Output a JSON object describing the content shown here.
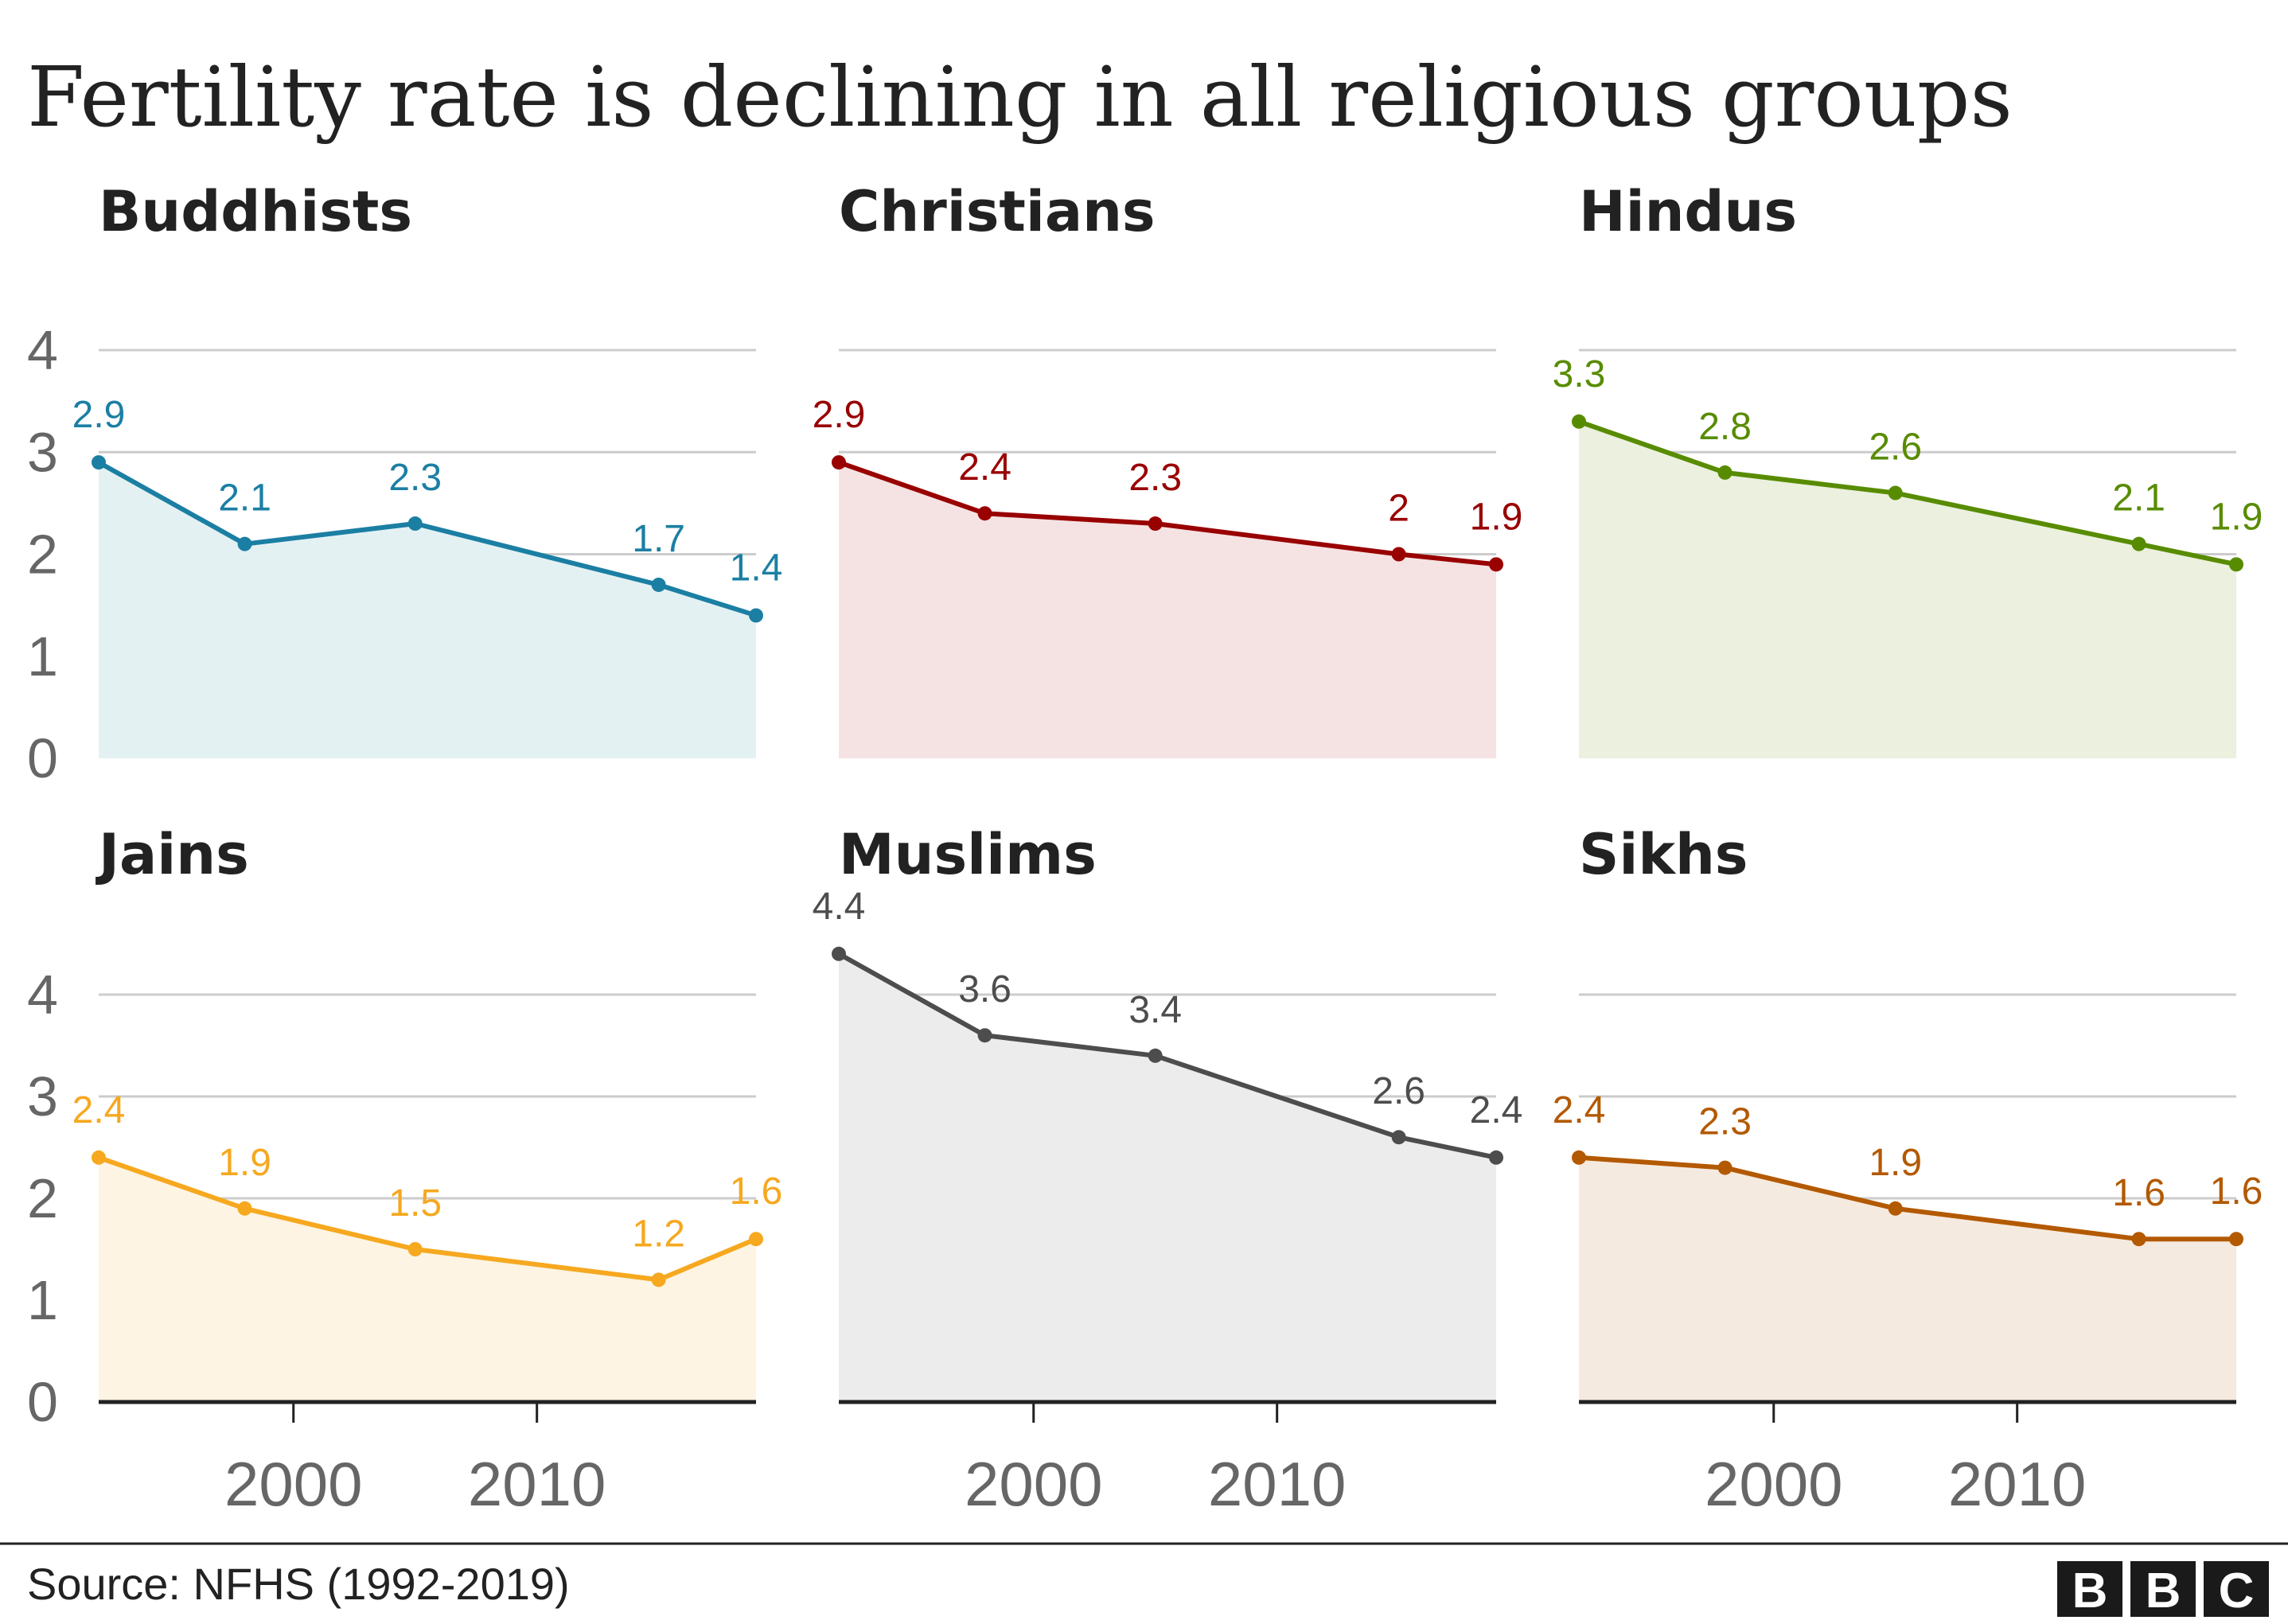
{
  "title": "Fertility rate is declining in all religious groups",
  "source": "Source: NFHS (1992-2019)",
  "logo": {
    "letters": [
      "B",
      "B",
      "C"
    ]
  },
  "colors": {
    "text": "#222222",
    "axis_text": "#666666",
    "grid": "#cccccc",
    "baseline": "#222222"
  },
  "chart_data": [
    {
      "type": "area",
      "title": "Buddhists",
      "color": "#1b7fa3",
      "fill": "#e4f1f3",
      "x": [
        1992,
        1998,
        2005,
        2015,
        2019
      ],
      "values": [
        2.9,
        2.1,
        2.3,
        1.7,
        1.4
      ],
      "labels": [
        "2.9",
        "2.1",
        "2.3",
        "1.7",
        "1.4"
      ],
      "ylim": [
        0,
        4
      ],
      "yticks": [
        "0",
        "1",
        "2",
        "3",
        "4"
      ],
      "xticks": [],
      "xlim": [
        1992,
        2019
      ]
    },
    {
      "type": "area",
      "title": "Christians",
      "color": "#990000",
      "fill": "#f5e3e3",
      "x": [
        1992,
        1998,
        2005,
        2015,
        2019
      ],
      "values": [
        2.9,
        2.4,
        2.3,
        2.0,
        1.9
      ],
      "labels": [
        "2.9",
        "2.4",
        "2.3",
        "2",
        "1.9"
      ],
      "ylim": [
        0,
        4
      ],
      "yticks": [],
      "xticks": [],
      "xlim": [
        1992,
        2019
      ]
    },
    {
      "type": "area",
      "title": "Hindus",
      "color": "#588c00",
      "fill": "#ebf0df",
      "x": [
        1992,
        1998,
        2005,
        2015,
        2019
      ],
      "values": [
        3.3,
        2.8,
        2.6,
        2.1,
        1.9
      ],
      "labels": [
        "3.3",
        "2.8",
        "2.6",
        "2.1",
        "1.9"
      ],
      "ylim": [
        0,
        4
      ],
      "yticks": [],
      "xticks": [],
      "xlim": [
        1992,
        2019
      ]
    },
    {
      "type": "area",
      "title": "Jains",
      "color": "#f6a81f",
      "fill": "#fdf4e3",
      "x": [
        1992,
        1998,
        2005,
        2015,
        2019
      ],
      "values": [
        2.4,
        1.9,
        1.5,
        1.2,
        1.6
      ],
      "labels": [
        "2.4",
        "1.9",
        "1.5",
        "1.2",
        "1.6"
      ],
      "ylim": [
        0,
        4
      ],
      "yticks": [
        "0",
        "1",
        "2",
        "3",
        "4"
      ],
      "xticks": [
        "2000",
        "2010"
      ],
      "xlim": [
        1992,
        2019
      ]
    },
    {
      "type": "area",
      "title": "Muslims",
      "color": "#4d4d4d",
      "fill": "#ececec",
      "x": [
        1992,
        1998,
        2005,
        2015,
        2019
      ],
      "values": [
        4.4,
        3.6,
        3.4,
        2.6,
        2.4
      ],
      "labels": [
        "4.4",
        "3.6",
        "3.4",
        "2.6",
        "2.4"
      ],
      "ylim": [
        0,
        4
      ],
      "yticks": [],
      "xticks": [
        "2000",
        "2010"
      ],
      "xlim": [
        1992,
        2019
      ]
    },
    {
      "type": "area",
      "title": "Sikhs",
      "color": "#b35900",
      "fill": "#f5eadf",
      "x": [
        1992,
        1998,
        2005,
        2015,
        2019
      ],
      "values": [
        2.4,
        2.3,
        1.9,
        1.6,
        1.6
      ],
      "labels": [
        "2.4",
        "2.3",
        "1.9",
        "1.6",
        "1.6"
      ],
      "ylim": [
        0,
        4
      ],
      "yticks": [],
      "xticks": [
        "2000",
        "2010"
      ],
      "xlim": [
        1992,
        2019
      ]
    }
  ]
}
